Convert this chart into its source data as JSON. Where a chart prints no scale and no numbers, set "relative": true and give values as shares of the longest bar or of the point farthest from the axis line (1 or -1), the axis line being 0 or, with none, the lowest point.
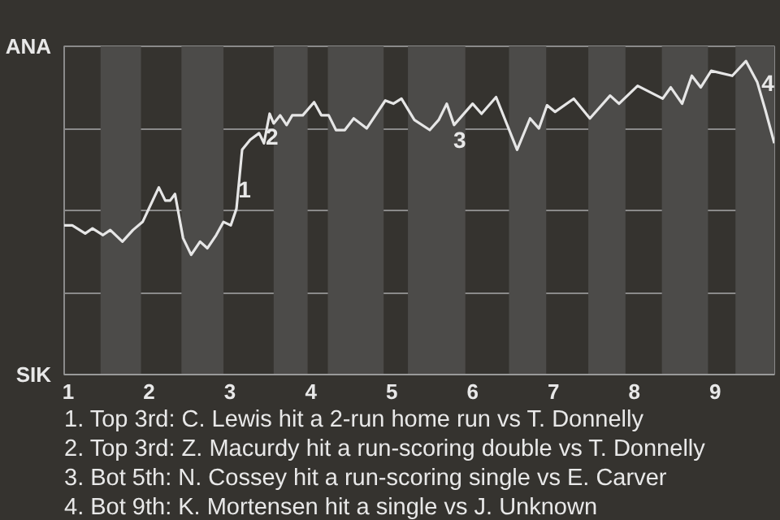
{
  "chart_data": {
    "type": "line",
    "relative": true,
    "x": [
      0.95,
      1.05,
      1.21,
      1.3,
      1.43,
      1.52,
      1.67,
      1.8,
      1.92,
      2.12,
      2.2,
      2.26,
      2.32,
      2.42,
      2.52,
      2.63,
      2.72,
      2.83,
      2.92,
      3.01,
      3.08,
      3.15,
      3.25,
      3.36,
      3.42,
      3.49,
      3.54,
      3.62,
      3.7,
      3.77,
      3.9,
      4.04,
      4.13,
      4.22,
      4.31,
      4.42,
      4.53,
      4.69,
      4.92,
      5.02,
      5.12,
      5.28,
      5.47,
      5.58,
      5.68,
      5.77,
      6,
      6.11,
      6.29,
      6.55,
      6.71,
      6.82,
      6.92,
      7.02,
      7.25,
      7.45,
      7.7,
      7.81,
      8.04,
      8.35,
      8.45,
      8.59,
      8.71,
      8.82,
      8.95,
      9.21,
      9.38,
      9.52,
      9.62,
      9.73
    ],
    "series": [
      {
        "color": "#e6e6e6",
        "values": [
          0.476,
          0.476,
          0.45,
          0.466,
          0.445,
          0.461,
          0.424,
          0.461,
          0.487,
          0.597,
          0.555,
          0.555,
          0.576,
          0.435,
          0.382,
          0.424,
          0.403,
          0.445,
          0.487,
          0.476,
          0.529,
          0.717,
          0.749,
          0.77,
          0.738,
          0.832,
          0.801,
          0.827,
          0.796,
          0.827,
          0.827,
          0.869,
          0.827,
          0.827,
          0.78,
          0.78,
          0.817,
          0.785,
          0.874,
          0.864,
          0.88,
          0.812,
          0.78,
          0.812,
          0.864,
          0.796,
          0.864,
          0.832,
          0.885,
          0.717,
          0.817,
          0.785,
          0.859,
          0.838,
          0.88,
          0.817,
          0.89,
          0.864,
          0.921,
          0.88,
          0.916,
          0.864,
          0.953,
          0.916,
          0.969,
          0.953,
          1,
          0.932,
          0.843,
          0.738
        ]
      }
    ],
    "xlim": [
      0.95,
      9.73
    ],
    "xticks": [
      1,
      2,
      3,
      4,
      5,
      6,
      7,
      8,
      9
    ],
    "grid": "y",
    "marker": "none",
    "line_style": "solid",
    "bands": [
      {
        "axis": "x",
        "from": 1.4,
        "to": 1.9,
        "color": "#4c4b49"
      },
      {
        "axis": "x",
        "from": 2.4,
        "to": 2.92,
        "color": "#4c4b49"
      },
      {
        "axis": "x",
        "from": 3.54,
        "to": 3.96,
        "color": "#4c4b49"
      },
      {
        "axis": "x",
        "from": 4.21,
        "to": 4.9,
        "color": "#4c4b49"
      },
      {
        "axis": "x",
        "from": 5.2,
        "to": 5.91,
        "color": "#4c4b49"
      },
      {
        "axis": "x",
        "from": 6.45,
        "to": 6.91,
        "color": "#4c4b49"
      },
      {
        "axis": "x",
        "from": 7.43,
        "to": 7.89,
        "color": "#4c4b49"
      },
      {
        "axis": "x",
        "from": 8.34,
        "to": 8.91,
        "color": "#4c4b49"
      },
      {
        "axis": "x",
        "from": 9.25,
        "to": 9.73,
        "color": "#4c4b49"
      }
    ],
    "annotations": [
      "ANA",
      "SIK",
      {
        "text": "1",
        "x": 3.18,
        "y": 0.592
      },
      {
        "text": "2",
        "x": 3.52,
        "y": 0.759
      },
      {
        "text": "3",
        "x": 5.84,
        "y": 0.75
      },
      {
        "text": "4",
        "x": 9.65,
        "y": 0.93
      },
      "1. Top 3rd: C. Lewis hit a 2-run home run vs T. Donnelly",
      "2. Top 3rd: Z. Macurdy hit a run-scoring double vs T. Donnelly",
      "3. Bot 5th: N. Cossey hit a run-scoring single vs E. Carver",
      "4. Bot 9th: K. Mortensen hit a single vs J. Unknown"
    ]
  }
}
